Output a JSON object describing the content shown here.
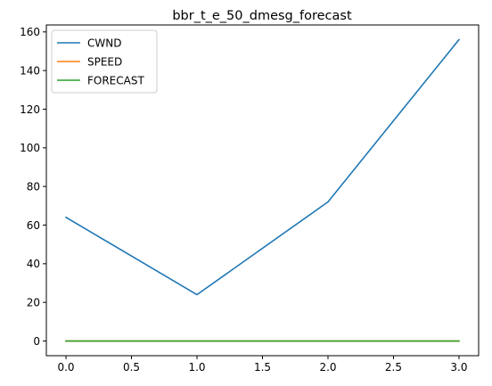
{
  "chart_data": {
    "type": "line",
    "title": "bbr_t_e_50_dmesg_forecast",
    "xlabel": "",
    "ylabel": "",
    "xlim": [
      -0.15,
      3.15
    ],
    "ylim": [
      -7.6,
      163.6
    ],
    "x_ticks": [
      0.0,
      0.5,
      1.0,
      1.5,
      2.0,
      2.5,
      3.0
    ],
    "x_tick_labels": [
      "0.0",
      "0.5",
      "1.0",
      "1.5",
      "2.0",
      "2.5",
      "3.0"
    ],
    "y_ticks": [
      0,
      20,
      40,
      60,
      80,
      100,
      120,
      140,
      160
    ],
    "y_tick_labels": [
      "0",
      "20",
      "40",
      "60",
      "80",
      "100",
      "120",
      "140",
      "160"
    ],
    "grid": false,
    "legend_position": "upper-left",
    "series": [
      {
        "name": "CWND",
        "color": "#1f77b4",
        "x": [
          0,
          1,
          2,
          3
        ],
        "y": [
          64,
          24,
          72,
          156
        ]
      },
      {
        "name": "SPEED",
        "color": "#ff7f0e",
        "x": [
          0,
          1,
          2,
          3
        ],
        "y": [
          0,
          0,
          0,
          0
        ]
      },
      {
        "name": "FORECAST",
        "color": "#2ca02c",
        "x": [
          0,
          1,
          2,
          3
        ],
        "y": [
          0,
          0,
          0,
          0
        ]
      }
    ]
  }
}
